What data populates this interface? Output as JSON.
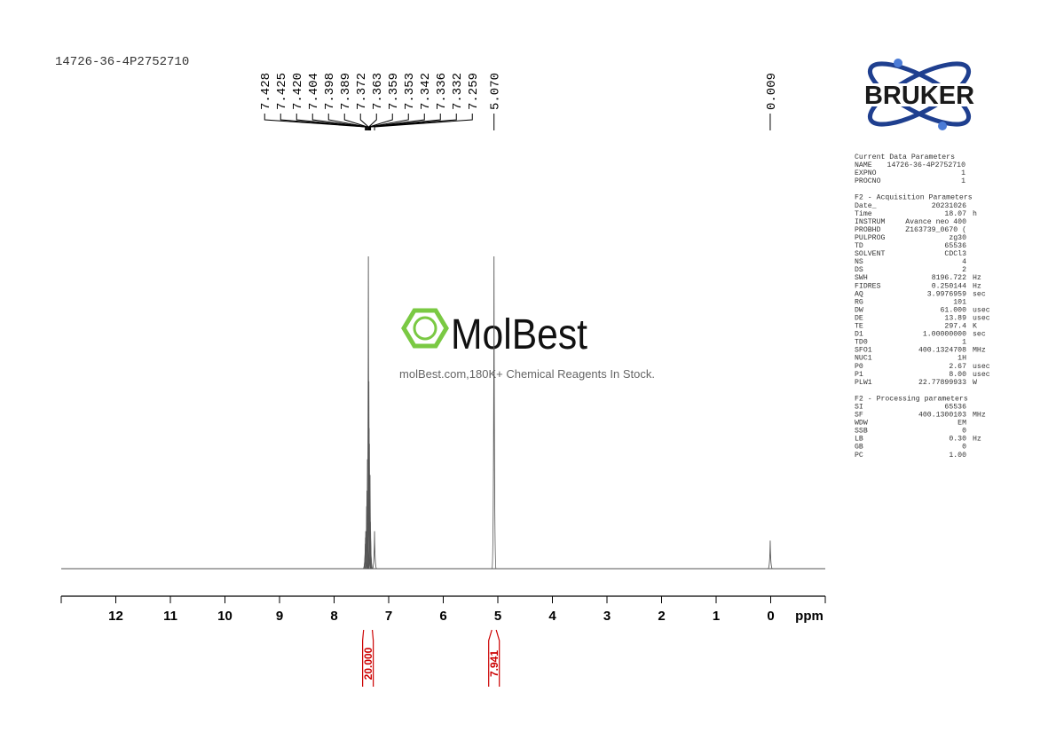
{
  "chart_data": {
    "type": "nmr",
    "title": "14726-36-4P2752710",
    "x_label": "ppm",
    "xlim": [
      13,
      -1
    ],
    "xticks": [
      12,
      11,
      10,
      9,
      8,
      7,
      6,
      5,
      4,
      3,
      2,
      1,
      0
    ],
    "ylim": [
      0,
      100
    ],
    "color": "#555555",
    "peaks": {
      "x": [
        7.428,
        7.425,
        7.42,
        7.404,
        7.398,
        7.389,
        7.372,
        7.363,
        7.359,
        7.353,
        7.342,
        7.336,
        7.332,
        7.259,
        5.07,
        0.009
      ],
      "x_labels": [
        "7.428",
        "7.425",
        "7.420",
        "7.404",
        "7.398",
        "7.389",
        "7.372",
        "7.363",
        "7.359",
        "7.353",
        "7.342",
        "7.336",
        "7.332",
        "7.259",
        "5.070",
        "0.009"
      ],
      "values": [
        8,
        10,
        12,
        20,
        25,
        35,
        100,
        60,
        45,
        40,
        30,
        15,
        12,
        12,
        100,
        9
      ]
    },
    "integrals": {
      "color": "#cc0000",
      "x": [
        [
          7.46,
          7.3
        ],
        [
          5.11,
          5.03
        ]
      ],
      "values": [
        20,
        7.941
      ],
      "value_labels": [
        "20.000",
        "7.941"
      ]
    }
  },
  "logo": "BRUKER",
  "watermark": {
    "brand": "MolBest",
    "tagline": "molBest.com,180K+ Chemical Reagents In Stock."
  },
  "parameters": {
    "sections": [
      {
        "title": "Current Data Parameters",
        "rows": [
          [
            "NAME",
            "14726-36-4P2752710"
          ],
          [
            "EXPNO",
            "1"
          ],
          [
            "PROCNO",
            "1"
          ]
        ]
      },
      {
        "title": "F2 - Acquisition Parameters",
        "rows": [
          [
            "Date_",
            "20231026"
          ],
          [
            "Time",
            "18.07",
            "h"
          ],
          [
            "INSTRUM",
            "Avance neo 400"
          ],
          [
            "PROBHD",
            "Z163739_0670 ("
          ],
          [
            "PULPROG",
            "zg30"
          ],
          [
            "TD",
            "65536"
          ],
          [
            "SOLVENT",
            "CDCl3"
          ],
          [
            "NS",
            "4"
          ],
          [
            "DS",
            "2"
          ],
          [
            "SWH",
            "8196.722",
            "Hz"
          ],
          [
            "FIDRES",
            "0.250144",
            "Hz"
          ],
          [
            "AQ",
            "3.9976959",
            "sec"
          ],
          [
            "RG",
            "101"
          ],
          [
            "DW",
            "61.000",
            "usec"
          ],
          [
            "DE",
            "13.89",
            "usec"
          ],
          [
            "TE",
            "297.4",
            "K"
          ],
          [
            "D1",
            "1.00000000",
            "sec"
          ],
          [
            "TD0",
            "1"
          ],
          [
            "SFO1",
            "400.1324708",
            "MHz"
          ],
          [
            "NUC1",
            "1H"
          ],
          [
            "P0",
            "2.67",
            "usec"
          ],
          [
            "P1",
            "8.00",
            "usec"
          ],
          [
            "PLW1",
            "22.77899933",
            "W"
          ]
        ]
      },
      {
        "title": "F2 - Processing parameters",
        "rows": [
          [
            "SI",
            "65536"
          ],
          [
            "SF",
            "400.1300103",
            "MHz"
          ],
          [
            "WDW",
            "EM"
          ],
          [
            "SSB",
            "0"
          ],
          [
            "LB",
            "0.30",
            "Hz"
          ],
          [
            "GB",
            "0"
          ],
          [
            "PC",
            "1.00"
          ]
        ]
      }
    ]
  }
}
